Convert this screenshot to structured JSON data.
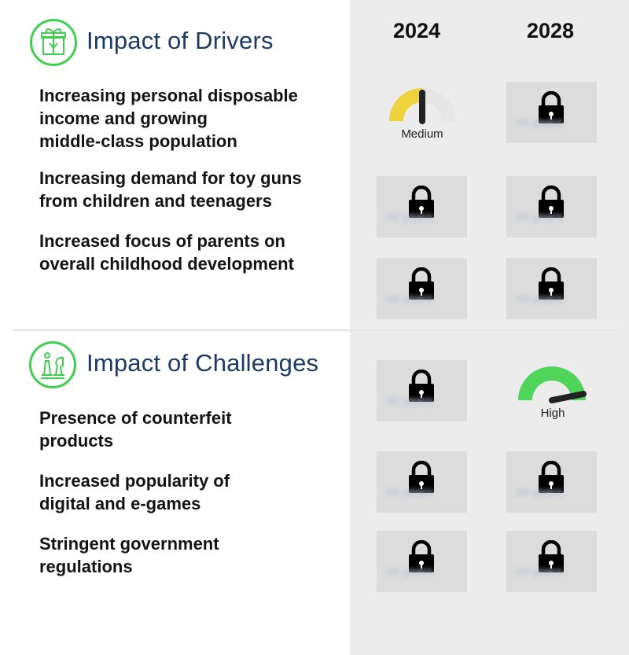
{
  "years": [
    "2024",
    "2028"
  ],
  "drivers": {
    "title": "Impact of Drivers",
    "icon": "gift-box-icon",
    "rows": [
      {
        "label": "Increasing personal disposable\nincome and growing\nmiddle-class population",
        "y2024": "Medium",
        "y2028": "locked"
      },
      {
        "label": "Increasing demand for toy guns\nfrom children and teenagers",
        "y2024": "locked",
        "y2028": "locked"
      },
      {
        "label": "Increased focus of parents on\noverall childhood development",
        "y2024": "locked",
        "y2028": "locked"
      }
    ]
  },
  "challenges": {
    "title": "Impact of Challenges",
    "icon": "chess-pieces-icon",
    "rows": [
      {
        "label": "Presence of counterfeit\nproducts",
        "y2024": "locked",
        "y2028": "High"
      },
      {
        "label": "Increased popularity of\ndigital and e-games",
        "y2024": "locked",
        "y2028": "locked"
      },
      {
        "label": "Stringent government\nregulations",
        "y2024": "locked",
        "y2028": "locked"
      }
    ]
  },
  "gauges": {
    "medium": {
      "label": "Medium",
      "level": 0.5,
      "color": "#f0d23c"
    },
    "high": {
      "label": "High",
      "level": 0.85,
      "color": "#4fd65a"
    }
  },
  "lock_icon": "padlock-icon",
  "colors": {
    "accent_green": "#3fcf4f",
    "title_blue": "#1b3a66",
    "panel_gray": "#ececec"
  }
}
